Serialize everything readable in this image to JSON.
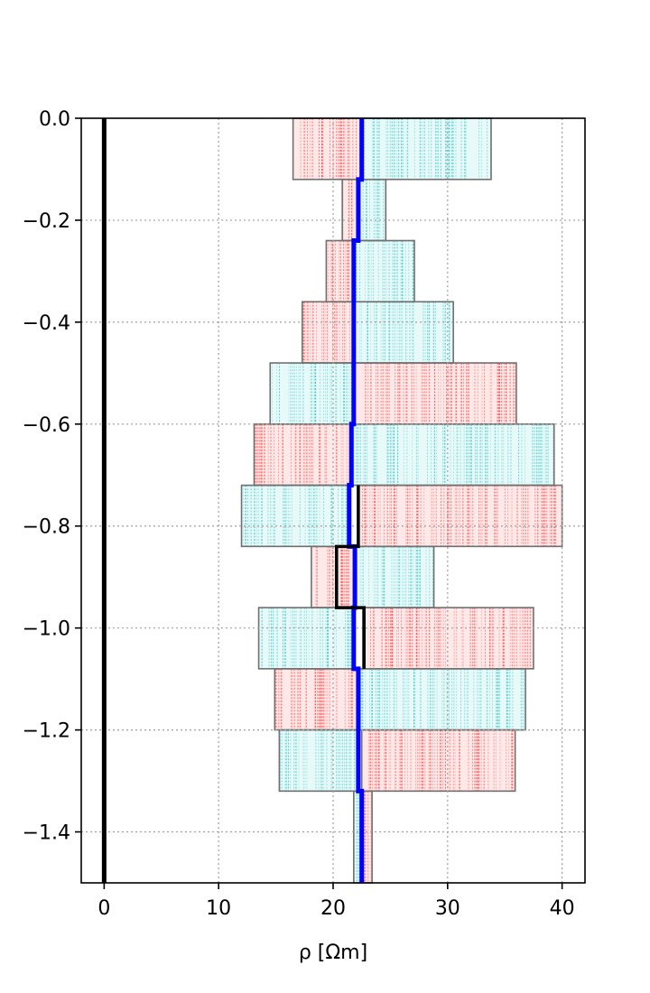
{
  "chart_data": {
    "type": "line",
    "title": "",
    "xlabel": "ρ [Ωm]",
    "ylabel": "",
    "xlim": [
      -2,
      42
    ],
    "ylim": [
      -1.5,
      0.0
    ],
    "grid": true,
    "grid_style": "dotted",
    "x_ticks": [
      0,
      10,
      20,
      30,
      40
    ],
    "x_tick_labels": [
      "0",
      "10",
      "20",
      "30",
      "40"
    ],
    "y_ticks": [
      0.0,
      -0.2,
      -0.4,
      -0.6,
      -0.8,
      -1.0,
      -1.2,
      -1.4
    ],
    "y_tick_labels": [
      "0.0",
      "−0.2",
      "−0.4",
      "−0.6",
      "−0.8",
      "−1.0",
      "−1.2",
      "−1.4"
    ],
    "colors": {
      "red_band": "#ff2020",
      "cyan_band": "#20c0c0",
      "mean": "#0000ff",
      "reference": "#000000",
      "true_model": "#000000",
      "box_edge": "#707070"
    },
    "layers": [
      {
        "top": 0.0,
        "bottom": -0.12,
        "red": [
          16.5,
          22.5
        ],
        "cyan": [
          22.5,
          33.8
        ]
      },
      {
        "top": -0.12,
        "bottom": -0.24,
        "red": [
          20.8,
          22.2
        ],
        "cyan": [
          22.2,
          24.6
        ]
      },
      {
        "top": -0.24,
        "bottom": -0.36,
        "red": [
          19.4,
          21.8
        ],
        "cyan": [
          21.8,
          27.1
        ]
      },
      {
        "top": -0.36,
        "bottom": -0.48,
        "red": [
          17.3,
          21.8
        ],
        "cyan": [
          21.8,
          30.5
        ]
      },
      {
        "top": -0.48,
        "bottom": -0.6,
        "red": [
          21.8,
          36.0
        ],
        "cyan": [
          14.5,
          21.8
        ]
      },
      {
        "top": -0.6,
        "bottom": -0.72,
        "red": [
          13.1,
          21.6
        ],
        "cyan": [
          21.6,
          39.3
        ]
      },
      {
        "top": -0.72,
        "bottom": -0.84,
        "red": [
          22.2,
          40.0
        ],
        "cyan": [
          12.0,
          21.4
        ]
      },
      {
        "top": -0.84,
        "bottom": -0.96,
        "red": [
          18.1,
          21.9
        ],
        "cyan": [
          21.9,
          28.8
        ]
      },
      {
        "top": -0.96,
        "bottom": -1.08,
        "red": [
          22.6,
          37.5
        ],
        "cyan": [
          13.5,
          21.8
        ]
      },
      {
        "top": -1.08,
        "bottom": -1.2,
        "red": [
          14.9,
          22.2
        ],
        "cyan": [
          22.2,
          36.8
        ]
      },
      {
        "top": -1.2,
        "bottom": -1.32,
        "red": [
          22.5,
          35.9
        ],
        "cyan": [
          15.3,
          22.2
        ]
      },
      {
        "top": -1.32,
        "bottom": -1.5,
        "red": [
          22.5,
          23.4
        ],
        "cyan": [
          21.8,
          22.4
        ]
      }
    ],
    "series": [
      {
        "values": [
          {
            "rho": 22.5,
            "top": 0.0,
            "bottom": -0.12
          },
          {
            "rho": 22.2,
            "top": -0.12,
            "bottom": -0.24
          },
          {
            "rho": 21.8,
            "top": -0.24,
            "bottom": -0.36
          },
          {
            "rho": 21.8,
            "top": -0.36,
            "bottom": -0.48
          },
          {
            "rho": 21.8,
            "top": -0.48,
            "bottom": -0.6
          },
          {
            "rho": 21.6,
            "top": -0.6,
            "bottom": -0.72
          },
          {
            "rho": 21.4,
            "top": -0.72,
            "bottom": -0.84
          },
          {
            "rho": 21.9,
            "top": -0.84,
            "bottom": -0.96
          },
          {
            "rho": 21.8,
            "top": -0.96,
            "bottom": -1.08
          },
          {
            "rho": 22.2,
            "top": -1.08,
            "bottom": -1.2
          },
          {
            "rho": 22.2,
            "top": -1.2,
            "bottom": -1.32
          },
          {
            "rho": 22.5,
            "top": -1.32,
            "bottom": -1.5
          }
        ]
      },
      {
        "values": [
          {
            "rho": 22.2,
            "top": -0.72,
            "bottom": -0.84
          },
          {
            "rho": 20.3,
            "top": -0.84,
            "bottom": -0.96
          },
          {
            "rho": 22.7,
            "top": -0.96,
            "bottom": -1.08
          }
        ]
      },
      {
        "values": [
          {
            "rho": 0.0,
            "top": 0.0,
            "bottom": -1.5
          }
        ]
      }
    ]
  }
}
